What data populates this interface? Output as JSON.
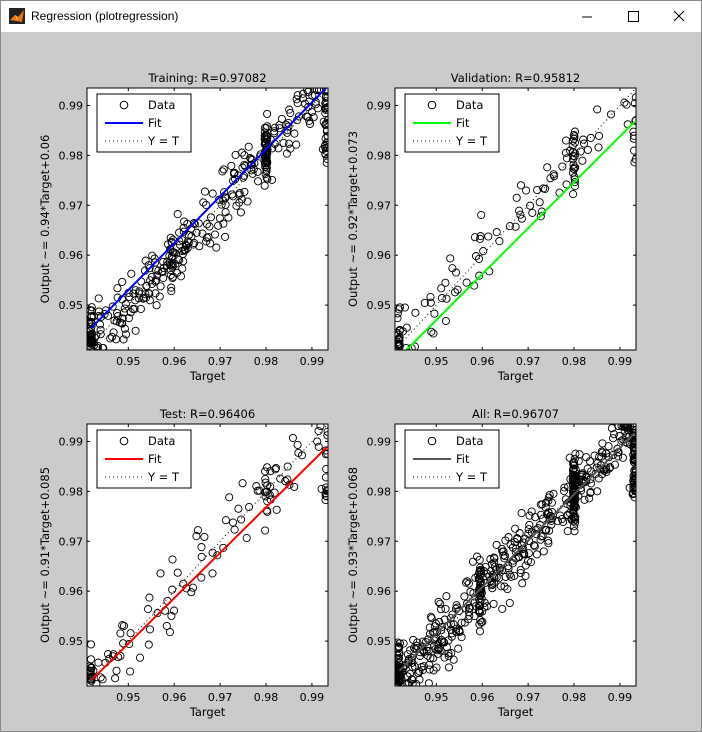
{
  "window": {
    "title": "Regression (plotregression)",
    "buttons": [
      "minimize",
      "maximize",
      "close"
    ]
  },
  "legend_labels": {
    "data": "Data",
    "fit": "Fit",
    "ident": "Y = T"
  },
  "chart_data": [
    {
      "type": "scatter",
      "title": "Training: R=0.97082",
      "xlabel": "Target",
      "ylabel": "Output ~= 0.94*Target+0.06",
      "xlim": [
        0.941,
        0.9935
      ],
      "ylim": [
        0.941,
        0.9935
      ],
      "xticks": [
        0.95,
        0.96,
        0.97,
        0.98,
        0.99
      ],
      "yticks": [
        0.95,
        0.96,
        0.97,
        0.98,
        0.99
      ],
      "fit": {
        "slope": 0.94,
        "intercept": 0.06,
        "color": "#0000ff"
      },
      "legend": [
        "Data",
        "Fit",
        "Y = T"
      ],
      "legend_position": "top-left",
      "n_points": 420,
      "seed": 11,
      "noise": 0.004
    },
    {
      "type": "scatter",
      "title": "Validation: R=0.95812",
      "xlabel": "Target",
      "ylabel": "Output ~= 0.92*Target+0.073",
      "xlim": [
        0.941,
        0.9935
      ],
      "ylim": [
        0.941,
        0.9935
      ],
      "xticks": [
        0.95,
        0.96,
        0.97,
        0.98,
        0.99
      ],
      "yticks": [
        0.95,
        0.96,
        0.97,
        0.98,
        0.99
      ],
      "fit": {
        "slope": 0.92,
        "intercept": 0.073,
        "color": "#00ff00"
      },
      "legend": [
        "Data",
        "Fit",
        "Y = T"
      ],
      "legend_position": "top-left",
      "n_points": 130,
      "seed": 23,
      "noise": 0.0045
    },
    {
      "type": "scatter",
      "title": "Test: R=0.96406",
      "xlabel": "Target",
      "ylabel": "Output ~= 0.91*Target+0.085",
      "xlim": [
        0.941,
        0.9935
      ],
      "ylim": [
        0.941,
        0.9935
      ],
      "xticks": [
        0.95,
        0.96,
        0.97,
        0.98,
        0.99
      ],
      "yticks": [
        0.95,
        0.96,
        0.97,
        0.98,
        0.99
      ],
      "fit": {
        "slope": 0.91,
        "intercept": 0.085,
        "color": "#ff0000"
      },
      "legend": [
        "Data",
        "Fit",
        "Y = T"
      ],
      "legend_position": "top-left",
      "n_points": 130,
      "seed": 37,
      "noise": 0.0045
    },
    {
      "type": "scatter",
      "title": "All: R=0.96707",
      "xlabel": "Target",
      "ylabel": "Output ~= 0.93*Target+0.068",
      "xlim": [
        0.941,
        0.9935
      ],
      "ylim": [
        0.941,
        0.9935
      ],
      "xticks": [
        0.95,
        0.96,
        0.97,
        0.98,
        0.99
      ],
      "yticks": [
        0.95,
        0.96,
        0.97,
        0.98,
        0.99
      ],
      "fit": {
        "slope": 0.93,
        "intercept": 0.068,
        "color": "#555555"
      },
      "legend": [
        "Data",
        "Fit",
        "Y = T"
      ],
      "legend_position": "top-left",
      "n_points": 680,
      "seed": 53,
      "noise": 0.0042
    }
  ]
}
